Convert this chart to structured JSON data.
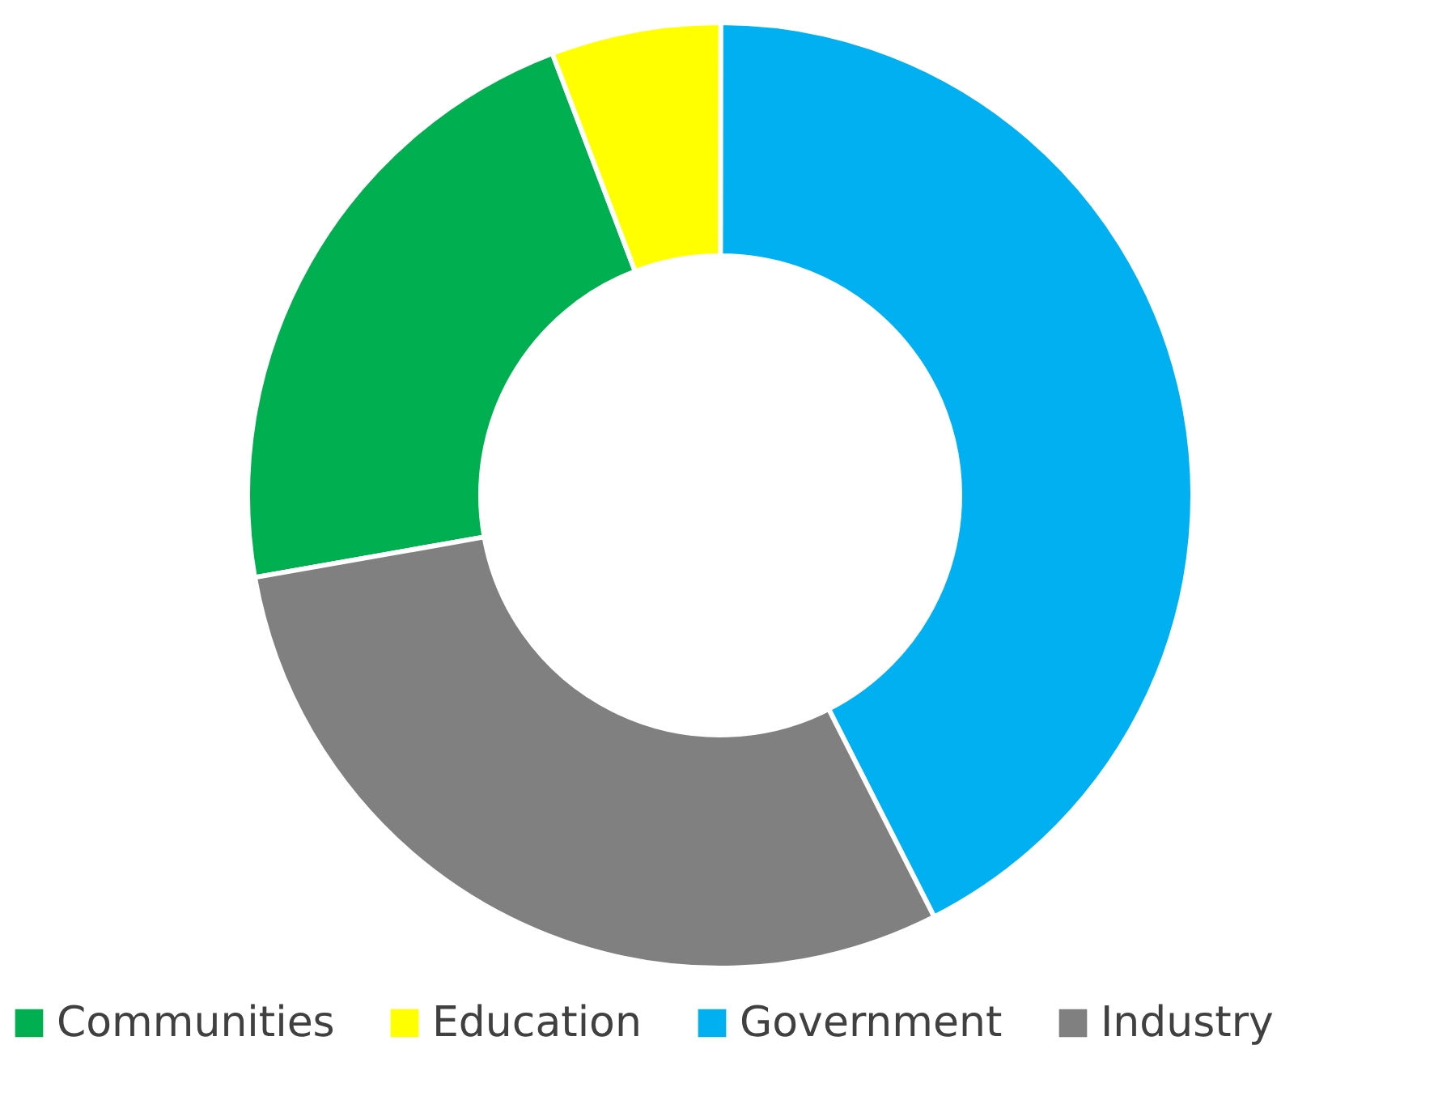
{
  "chart_data": {
    "type": "donut",
    "categories": [
      "Communities",
      "Education",
      "Government",
      "Industry"
    ],
    "values": [
      22,
      5.8,
      42.5,
      29.7
    ],
    "colors": [
      "#00b050",
      "#ffff00",
      "#00b0f0",
      "#808080"
    ],
    "legend": "bottom"
  }
}
